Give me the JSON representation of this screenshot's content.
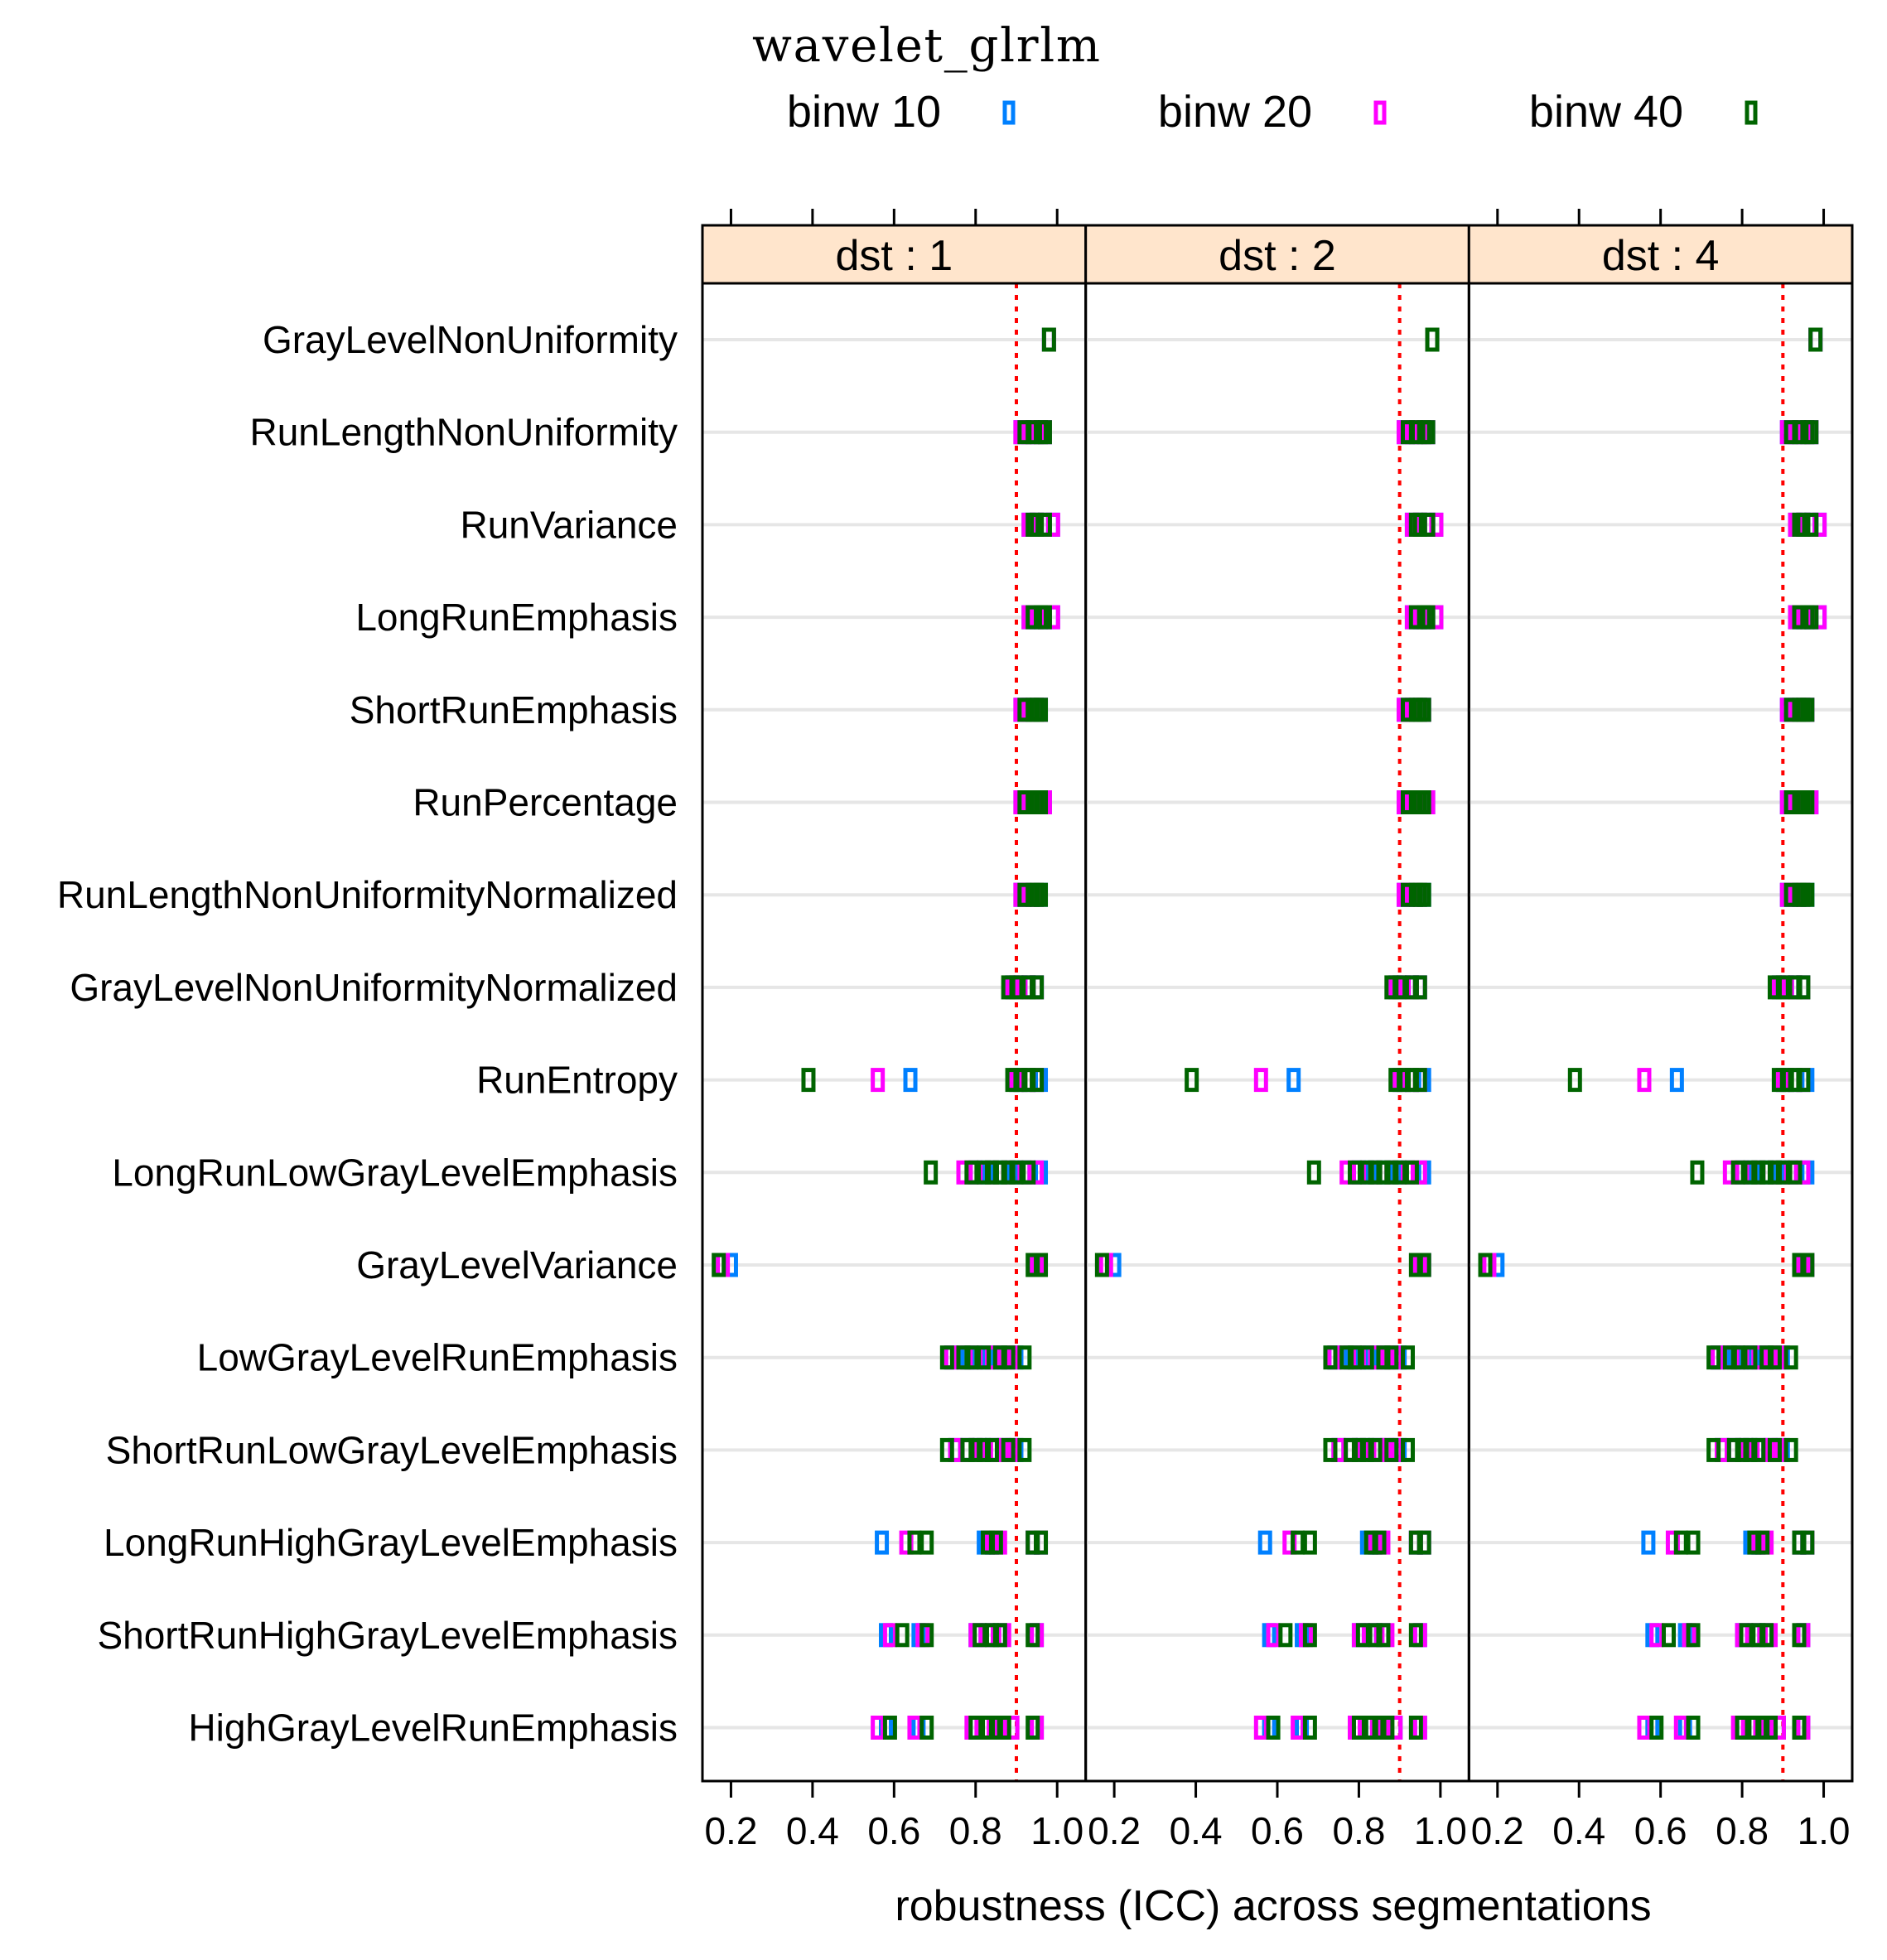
{
  "chart_data": {
    "type": "strip-dot",
    "title": "wavelet_glrlm",
    "xlabel": "robustness (ICC) across segmentations",
    "xlim": [
      0.13,
      1.07
    ],
    "xticks": [
      "0.2",
      "0.4",
      "0.6",
      "0.8",
      "1.0"
    ],
    "threshold": 0.9,
    "colors": {
      "binw 10": "#0080FF",
      "binw 20": "#FF00FF",
      "binw 40": "#006400",
      "strip_bg": "#FFE5CC",
      "threshold": "#FF0000",
      "gridline": "#E6E6E6"
    },
    "legend": [
      {
        "label": "binw 10",
        "color_key": "binw 10"
      },
      {
        "label": "binw 20",
        "color_key": "binw 20"
      },
      {
        "label": "binw 40",
        "color_key": "binw 40"
      }
    ],
    "panels": [
      "dst : 1",
      "dst : 2",
      "dst : 4"
    ],
    "features": [
      "GrayLevelNonUniformity",
      "RunLengthNonUniformity",
      "RunVariance",
      "LongRunEmphasis",
      "ShortRunEmphasis",
      "RunPercentage",
      "RunLengthNonUniformityNormalized",
      "GrayLevelNonUniformityNormalized",
      "RunEntropy",
      "LongRunLowGrayLevelEmphasis",
      "GrayLevelVariance",
      "LowGrayLevelRunEmphasis",
      "ShortRunLowGrayLevelEmphasis",
      "LongRunHighGrayLevelEmphasis",
      "ShortRunHighGrayLevelEmphasis",
      "HighGrayLevelRunEmphasis"
    ],
    "series": [
      {
        "name": "binw 10",
        "panels": [
          [
            [
              0.98
            ],
            [
              0.91,
              0.93,
              0.95,
              0.97
            ],
            [
              0.93,
              0.95,
              0.97,
              0.99
            ],
            [
              0.93,
              0.95,
              0.97,
              0.99
            ],
            [
              0.91,
              0.93,
              0.95,
              0.96
            ],
            [
              0.91,
              0.93,
              0.95,
              0.97
            ],
            [
              0.91,
              0.92,
              0.94,
              0.96
            ],
            [
              0.89,
              0.91,
              0.93,
              0.95
            ],
            [
              0.64,
              0.9,
              0.93,
              0.96
            ],
            [
              0.8,
              0.83,
              0.86,
              0.89,
              0.92,
              0.96
            ],
            [
              0.2,
              0.95,
              0.96
            ],
            [
              0.74,
              0.78,
              0.8,
              0.83,
              0.86,
              0.9
            ],
            [
              0.75,
              0.78,
              0.81,
              0.84,
              0.87,
              0.9
            ],
            [
              0.57,
              0.82,
              0.84,
              0.94,
              0.96
            ],
            [
              0.58,
              0.66,
              0.8,
              0.83,
              0.86,
              0.95
            ],
            [
              0.58,
              0.66,
              0.8,
              0.83,
              0.86,
              0.89,
              0.95
            ]
          ],
          [
            [
              0.98
            ],
            [
              0.91,
              0.93,
              0.95,
              0.97
            ],
            [
              0.93,
              0.95,
              0.97,
              0.99
            ],
            [
              0.93,
              0.95,
              0.97,
              0.99
            ],
            [
              0.91,
              0.93,
              0.95,
              0.96
            ],
            [
              0.91,
              0.93,
              0.95,
              0.97
            ],
            [
              0.91,
              0.92,
              0.94,
              0.96
            ],
            [
              0.89,
              0.91,
              0.93,
              0.95
            ],
            [
              0.64,
              0.9,
              0.93,
              0.96
            ],
            [
              0.8,
              0.83,
              0.86,
              0.89,
              0.92,
              0.96
            ],
            [
              0.2,
              0.95,
              0.96
            ],
            [
              0.74,
              0.78,
              0.8,
              0.83,
              0.86,
              0.9
            ],
            [
              0.75,
              0.78,
              0.81,
              0.84,
              0.87,
              0.9
            ],
            [
              0.57,
              0.82,
              0.84,
              0.94,
              0.96
            ],
            [
              0.58,
              0.66,
              0.8,
              0.83,
              0.86,
              0.95
            ],
            [
              0.58,
              0.66,
              0.8,
              0.83,
              0.86,
              0.89,
              0.95
            ]
          ],
          [
            [
              0.98
            ],
            [
              0.91,
              0.93,
              0.95,
              0.97
            ],
            [
              0.93,
              0.95,
              0.97,
              0.99
            ],
            [
              0.93,
              0.95,
              0.97,
              0.99
            ],
            [
              0.91,
              0.93,
              0.95,
              0.96
            ],
            [
              0.91,
              0.93,
              0.95,
              0.97
            ],
            [
              0.91,
              0.92,
              0.94,
              0.96
            ],
            [
              0.89,
              0.91,
              0.93,
              0.95
            ],
            [
              0.64,
              0.9,
              0.93,
              0.96
            ],
            [
              0.8,
              0.83,
              0.86,
              0.89,
              0.92,
              0.96
            ],
            [
              0.2,
              0.95,
              0.96
            ],
            [
              0.74,
              0.78,
              0.8,
              0.83,
              0.86,
              0.9
            ],
            [
              0.75,
              0.78,
              0.81,
              0.84,
              0.87,
              0.9
            ],
            [
              0.57,
              0.82,
              0.84,
              0.94,
              0.96
            ],
            [
              0.58,
              0.66,
              0.8,
              0.83,
              0.86,
              0.95
            ],
            [
              0.58,
              0.66,
              0.8,
              0.83,
              0.86,
              0.89,
              0.95
            ]
          ]
        ]
      },
      {
        "name": "binw 20",
        "panels": [
          [
            [
              0.98
            ],
            [
              0.91,
              0.93,
              0.95,
              0.97
            ],
            [
              0.93,
              0.95,
              0.97,
              0.99
            ],
            [
              0.93,
              0.95,
              0.97,
              0.99
            ],
            [
              0.91,
              0.93,
              0.95,
              0.96
            ],
            [
              0.91,
              0.93,
              0.95,
              0.97
            ],
            [
              0.91,
              0.93,
              0.95
            ],
            [
              0.89,
              0.91,
              0.93,
              0.95
            ],
            [
              0.56,
              0.9,
              0.93,
              0.95
            ],
            [
              0.77,
              0.8,
              0.84,
              0.88,
              0.92,
              0.95
            ],
            [
              0.18,
              0.95,
              0.96
            ],
            [
              0.74,
              0.77,
              0.8,
              0.84,
              0.87,
              0.89
            ],
            [
              0.75,
              0.78,
              0.81,
              0.85,
              0.87,
              0.89
            ],
            [
              0.63,
              0.84,
              0.86,
              0.94,
              0.96
            ],
            [
              0.59,
              0.67,
              0.8,
              0.83,
              0.87,
              0.95
            ],
            [
              0.56,
              0.65,
              0.79,
              0.82,
              0.86,
              0.89,
              0.95
            ]
          ],
          [
            [
              0.98
            ],
            [
              0.91,
              0.93,
              0.95,
              0.97
            ],
            [
              0.93,
              0.95,
              0.97,
              0.99
            ],
            [
              0.93,
              0.95,
              0.97,
              0.99
            ],
            [
              0.91,
              0.93,
              0.95,
              0.96
            ],
            [
              0.91,
              0.93,
              0.95,
              0.97
            ],
            [
              0.91,
              0.93,
              0.95
            ],
            [
              0.89,
              0.91,
              0.93,
              0.95
            ],
            [
              0.56,
              0.9,
              0.93,
              0.95
            ],
            [
              0.77,
              0.8,
              0.84,
              0.88,
              0.92,
              0.95
            ],
            [
              0.18,
              0.95,
              0.96
            ],
            [
              0.74,
              0.77,
              0.8,
              0.84,
              0.87,
              0.89
            ],
            [
              0.75,
              0.78,
              0.81,
              0.85,
              0.87,
              0.89
            ],
            [
              0.63,
              0.84,
              0.86,
              0.94,
              0.96
            ],
            [
              0.59,
              0.67,
              0.8,
              0.83,
              0.87,
              0.95
            ],
            [
              0.56,
              0.65,
              0.79,
              0.82,
              0.86,
              0.89,
              0.95
            ]
          ],
          [
            [
              0.98
            ],
            [
              0.91,
              0.93,
              0.95,
              0.97
            ],
            [
              0.93,
              0.95,
              0.97,
              0.99
            ],
            [
              0.93,
              0.95,
              0.97,
              0.99
            ],
            [
              0.91,
              0.93,
              0.95,
              0.96
            ],
            [
              0.91,
              0.93,
              0.95,
              0.97
            ],
            [
              0.91,
              0.93,
              0.95
            ],
            [
              0.89,
              0.91,
              0.93,
              0.95
            ],
            [
              0.56,
              0.9,
              0.93,
              0.95
            ],
            [
              0.77,
              0.8,
              0.84,
              0.88,
              0.92,
              0.95
            ],
            [
              0.18,
              0.95,
              0.96
            ],
            [
              0.74,
              0.77,
              0.8,
              0.84,
              0.87,
              0.89
            ],
            [
              0.75,
              0.78,
              0.81,
              0.85,
              0.87,
              0.89
            ],
            [
              0.63,
              0.84,
              0.86,
              0.94,
              0.96
            ],
            [
              0.59,
              0.67,
              0.8,
              0.83,
              0.87,
              0.95
            ],
            [
              0.56,
              0.65,
              0.79,
              0.82,
              0.86,
              0.89,
              0.95
            ]
          ]
        ]
      },
      {
        "name": "binw 40",
        "panels": [
          [
            [
              0.98
            ],
            [
              0.92,
              0.94,
              0.96,
              0.97
            ],
            [
              0.94,
              0.95,
              0.97
            ],
            [
              0.94,
              0.96,
              0.97
            ],
            [
              0.92,
              0.94,
              0.95,
              0.96
            ],
            [
              0.92,
              0.94,
              0.95,
              0.96
            ],
            [
              0.92,
              0.94,
              0.95,
              0.96
            ],
            [
              0.88,
              0.9,
              0.93,
              0.95
            ],
            [
              0.39,
              0.89,
              0.91,
              0.93,
              0.95
            ],
            [
              0.69,
              0.79,
              0.82,
              0.84,
              0.86,
              0.88,
              0.9,
              0.93
            ],
            [
              0.17,
              0.94,
              0.96
            ],
            [
              0.73,
              0.77,
              0.79,
              0.82,
              0.86,
              0.88,
              0.92
            ],
            [
              0.73,
              0.78,
              0.8,
              0.82,
              0.84,
              0.88,
              0.92
            ],
            [
              0.65,
              0.68,
              0.83,
              0.85,
              0.94,
              0.96
            ],
            [
              0.62,
              0.68,
              0.81,
              0.84,
              0.86,
              0.94
            ],
            [
              0.59,
              0.68,
              0.8,
              0.83,
              0.85,
              0.87,
              0.94
            ]
          ],
          [
            [
              0.98
            ],
            [
              0.92,
              0.94,
              0.96,
              0.97
            ],
            [
              0.94,
              0.95,
              0.97
            ],
            [
              0.94,
              0.96,
              0.97
            ],
            [
              0.92,
              0.94,
              0.95,
              0.96
            ],
            [
              0.92,
              0.94,
              0.95,
              0.96
            ],
            [
              0.92,
              0.94,
              0.95,
              0.96
            ],
            [
              0.88,
              0.9,
              0.93,
              0.95
            ],
            [
              0.39,
              0.89,
              0.91,
              0.93,
              0.95
            ],
            [
              0.69,
              0.79,
              0.82,
              0.84,
              0.86,
              0.88,
              0.9,
              0.93
            ],
            [
              0.17,
              0.94,
              0.96
            ],
            [
              0.73,
              0.77,
              0.79,
              0.82,
              0.86,
              0.88,
              0.92
            ],
            [
              0.73,
              0.78,
              0.8,
              0.82,
              0.84,
              0.88,
              0.92
            ],
            [
              0.65,
              0.68,
              0.83,
              0.85,
              0.94,
              0.96
            ],
            [
              0.62,
              0.68,
              0.81,
              0.84,
              0.86,
              0.94
            ],
            [
              0.59,
              0.68,
              0.8,
              0.83,
              0.85,
              0.87,
              0.94
            ]
          ],
          [
            [
              0.98
            ],
            [
              0.92,
              0.94,
              0.96,
              0.97
            ],
            [
              0.94,
              0.95,
              0.97
            ],
            [
              0.94,
              0.96,
              0.97
            ],
            [
              0.92,
              0.94,
              0.95,
              0.96
            ],
            [
              0.92,
              0.94,
              0.95,
              0.96
            ],
            [
              0.92,
              0.94,
              0.95,
              0.96
            ],
            [
              0.88,
              0.9,
              0.93,
              0.95
            ],
            [
              0.39,
              0.89,
              0.91,
              0.93,
              0.95
            ],
            [
              0.69,
              0.79,
              0.82,
              0.84,
              0.86,
              0.88,
              0.9,
              0.93
            ],
            [
              0.17,
              0.94,
              0.96
            ],
            [
              0.73,
              0.77,
              0.79,
              0.82,
              0.86,
              0.88,
              0.92
            ],
            [
              0.73,
              0.78,
              0.8,
              0.82,
              0.84,
              0.88,
              0.92
            ],
            [
              0.65,
              0.68,
              0.83,
              0.85,
              0.94,
              0.96
            ],
            [
              0.62,
              0.68,
              0.81,
              0.84,
              0.86,
              0.94
            ],
            [
              0.59,
              0.68,
              0.8,
              0.83,
              0.85,
              0.87,
              0.94
            ]
          ]
        ]
      }
    ]
  }
}
